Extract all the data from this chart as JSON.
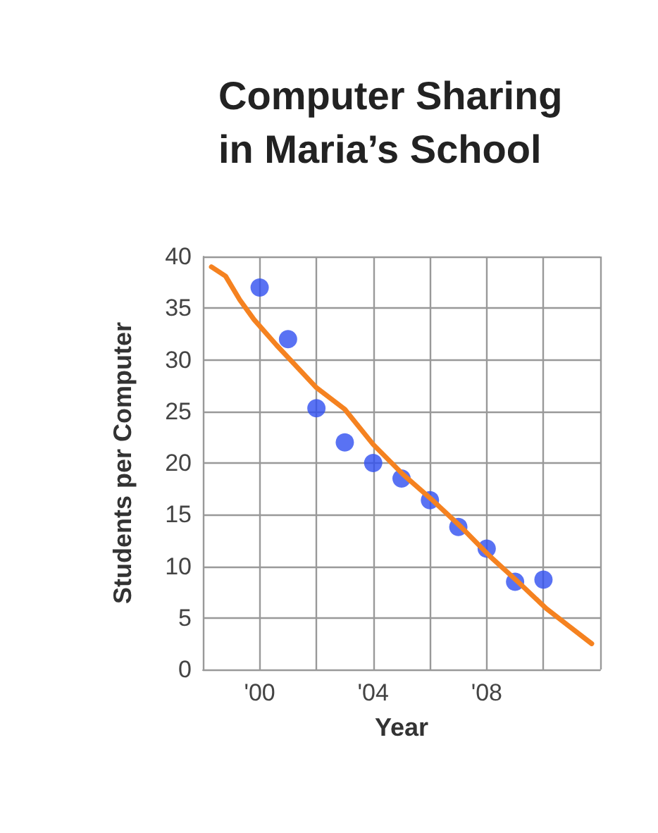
{
  "chart_data": {
    "type": "scatter",
    "title": "Computer Sharing\nin Maria’s School",
    "xlabel": "Year",
    "ylabel": "Students per Computer",
    "series": [
      {
        "color": "#2f4ff0",
        "x": [
          2000,
          2001,
          2002,
          2003,
          2004,
          2005,
          2006,
          2007,
          2008,
          2009,
          2010
        ],
        "values": [
          37,
          32,
          25.3,
          22,
          20,
          18.5,
          16.4,
          13.8,
          11.7,
          8.5,
          8.7
        ]
      },
      {
        "type": "line",
        "color": "#f58220",
        "marker": "none",
        "x": [
          1998.3,
          1998.8,
          1999.3,
          1999.8,
          2000.6,
          2002,
          2003,
          2004,
          2005.05,
          2006.05,
          2007.1,
          2008.1,
          2009.1,
          2010.1,
          2010.9,
          2011.7
        ],
        "values": [
          39,
          38.1,
          35.8,
          33.9,
          31.4,
          27.3,
          25.2,
          21.8,
          18.9,
          16.5,
          13.8,
          11,
          8.5,
          5.9,
          4.2,
          2.5
        ]
      }
    ],
    "xlim": [
      1998,
      2012
    ],
    "xticks": [
      {
        "value": 1998,
        "label": null
      },
      {
        "value": 2000,
        "label": "'00"
      },
      {
        "value": 2002,
        "label": null
      },
      {
        "value": 2004,
        "label": "'04"
      },
      {
        "value": 2006,
        "label": null
      },
      {
        "value": 2008,
        "label": "'08"
      },
      {
        "value": 2010,
        "label": null
      },
      {
        "value": 2012,
        "label": null
      }
    ],
    "ylim": [
      0,
      40
    ],
    "yticks": [
      0,
      5,
      10,
      15,
      20,
      25,
      30,
      35,
      40
    ],
    "grid": true,
    "marker": "circle"
  }
}
